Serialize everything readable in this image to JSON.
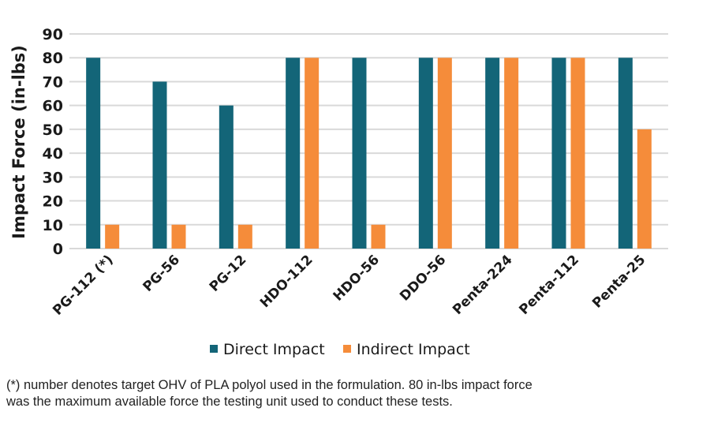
{
  "chart_data": {
    "type": "bar",
    "title": "",
    "xlabel": "",
    "ylabel": "Impact Force (in-lbs)",
    "ylim": [
      0,
      90
    ],
    "yticks": [
      "0",
      "10",
      "20",
      "30",
      "40",
      "50",
      "60",
      "70",
      "80",
      "90"
    ],
    "grid": true,
    "legend_position": "bottom",
    "categories": [
      "PG-112 (*)",
      "PG-56",
      "PG-12",
      "HDO-112",
      "HDO-56",
      "DDO-56",
      "Penta-224",
      "Penta-112",
      "Penta-25"
    ],
    "series": [
      {
        "name": "Direct Impact",
        "color": "#136578",
        "values": [
          80,
          70,
          60,
          80,
          80,
          80,
          80,
          80,
          80
        ]
      },
      {
        "name": "Indirect Impact",
        "color": "#f58c3a",
        "values": [
          10,
          10,
          10,
          80,
          10,
          80,
          80,
          80,
          50
        ]
      }
    ]
  },
  "footnote": {
    "line1": "(*) number denotes target OHV of PLA polyol used in the formulation. 80 in-lbs impact force",
    "line2": "was the maximum available force the testing unit used to conduct these tests."
  }
}
